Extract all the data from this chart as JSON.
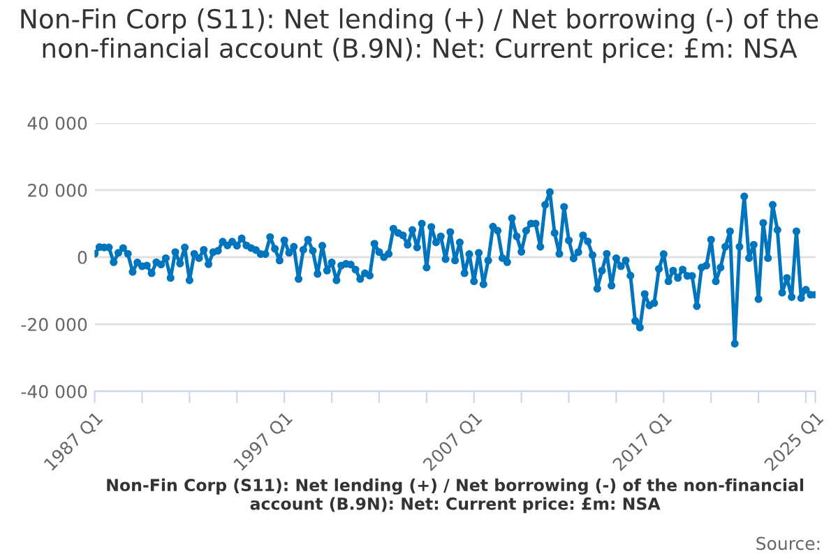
{
  "chart_data": {
    "type": "line",
    "title": "Non-Fin Corp (S11): Net lending (+) / Net borrowing (-) of the non-financial account (B.9N): Net: Current price: £m: NSA",
    "xlabel": "Non-Fin Corp (S11): Net lending (+) / Net borrowing (-) of the non-financial account (B.9N): Net: Current price: £m: NSA",
    "annotations": [
      "Source:"
    ],
    "categories": [
      "1987 Q1",
      null,
      null,
      null,
      null,
      null,
      null,
      null,
      null,
      null,
      null,
      null,
      null,
      null,
      null,
      null,
      null,
      null,
      null,
      null,
      null,
      null,
      null,
      null,
      null,
      null,
      null,
      null,
      null,
      null,
      null,
      null,
      null,
      null,
      null,
      null,
      null,
      null,
      null,
      null,
      "1997 Q1",
      null,
      null,
      null,
      null,
      null,
      null,
      null,
      null,
      null,
      null,
      null,
      null,
      null,
      null,
      null,
      null,
      null,
      null,
      null,
      null,
      null,
      null,
      null,
      null,
      null,
      null,
      null,
      null,
      null,
      null,
      null,
      null,
      null,
      null,
      null,
      null,
      null,
      null,
      null,
      "2007 Q1",
      null,
      null,
      null,
      null,
      null,
      null,
      null,
      null,
      null,
      null,
      null,
      null,
      null,
      null,
      null,
      null,
      null,
      null,
      null,
      null,
      null,
      null,
      null,
      null,
      null,
      null,
      null,
      null,
      null,
      null,
      null,
      null,
      null,
      null,
      null,
      null,
      null,
      null,
      null,
      "2017 Q1",
      null,
      null,
      null,
      null,
      null,
      null,
      null,
      null,
      null,
      null,
      null,
      null,
      null,
      null,
      null,
      null,
      null,
      null,
      null,
      null,
      null,
      null,
      null,
      null,
      null,
      null,
      null,
      null,
      null,
      null,
      null,
      "2025 Q1"
    ],
    "series": [
      {
        "color": "#0075bd",
        "values": [
          1000,
          3000,
          2900,
          2900,
          -1500,
          1300,
          2700,
          1000,
          -4400,
          -1600,
          -2700,
          -2500,
          -4800,
          -1500,
          -2200,
          -300,
          -6200,
          1500,
          -1900,
          2900,
          -6900,
          1000,
          -300,
          2200,
          -2100,
          1500,
          1900,
          4600,
          3500,
          4600,
          3400,
          5600,
          3500,
          2700,
          2100,
          900,
          900,
          6000,
          2500,
          -1000,
          5000,
          1300,
          3100,
          -6500,
          2200,
          5200,
          1900,
          -5000,
          3400,
          -4000,
          -1600,
          -6900,
          -2500,
          -2000,
          -2200,
          -3700,
          -6500,
          -4800,
          -5500,
          4000,
          1500,
          0,
          1000,
          8500,
          7200,
          6500,
          3700,
          8100,
          2900,
          10000,
          -3100,
          9000,
          4400,
          6200,
          -600,
          7500,
          -1000,
          4400,
          -4800,
          900,
          -7200,
          1300,
          -8100,
          -1000,
          9100,
          7900,
          -300,
          -1500,
          11600,
          6200,
          1600,
          7900,
          10000,
          10000,
          3100,
          15600,
          19400,
          7200,
          1000,
          15000,
          5000,
          -400,
          1500,
          6500,
          4700,
          600,
          -9400,
          -4000,
          1000,
          -8500,
          -300,
          -2700,
          -1000,
          -5500,
          -19000,
          -21000,
          -11000,
          -14400,
          -13700,
          -3500,
          900,
          -7200,
          -4000,
          -6200,
          -3700,
          -5600,
          -5600,
          -14600,
          -3100,
          -2500,
          5200,
          -7200,
          -3100,
          3100,
          7700,
          -25800,
          3100,
          18100,
          -300,
          3700,
          -12500,
          10200,
          -300,
          15600,
          8100,
          -10600,
          -6200,
          -11900,
          7700,
          -12200,
          -9700,
          -11200,
          -11200
        ]
      }
    ],
    "ylim": [
      -40000,
      40000
    ],
    "yticks": [
      {
        "value": -40000,
        "label": "-40 000"
      },
      {
        "value": -20000,
        "label": "-20 000"
      },
      {
        "value": 0,
        "label": "0"
      },
      {
        "value": 20000,
        "label": "20 000"
      },
      {
        "value": 40000,
        "label": "40 000"
      }
    ],
    "grid": "y",
    "marker": "circle",
    "line_style": "solid",
    "legend": false
  }
}
